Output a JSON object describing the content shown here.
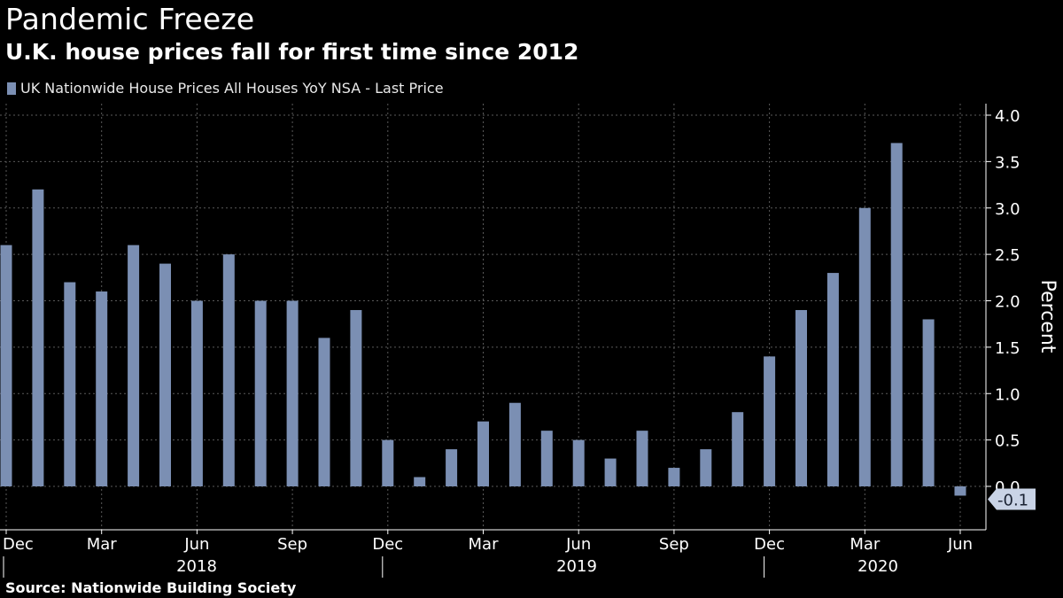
{
  "header": {
    "title": "Pandemic Freeze",
    "subtitle": "U.K. house prices fall for first time since 2012"
  },
  "legend": {
    "label": "UK Nationwide House Prices All Houses YoY NSA - Last Price"
  },
  "source": "Source: Nationwide Building Society",
  "colors": {
    "bar": "#7b8fb3",
    "background": "#000000",
    "grid": "#5a5a5a"
  },
  "chart_data": {
    "type": "bar",
    "title": "Pandemic Freeze",
    "subtitle": "U.K. house prices fall for first time since 2012",
    "ylabel": "Percent",
    "xlabel": "",
    "ylim": [
      -0.4,
      4.1
    ],
    "yticks": [
      "4.0",
      "3.5",
      "3.0",
      "2.5",
      "2.0",
      "1.5",
      "1.0",
      "0.5",
      "0.0"
    ],
    "grid": true,
    "legend_position": "top-left",
    "series": [
      {
        "name": "UK Nationwide House Prices All Houses YoY NSA - Last Price",
        "categories": [
          "Dec 2017",
          "Jan 2018",
          "Feb 2018",
          "Mar 2018",
          "Apr 2018",
          "May 2018",
          "Jun 2018",
          "Jul 2018",
          "Aug 2018",
          "Sep 2018",
          "Oct 2018",
          "Nov 2018",
          "Dec 2018",
          "Jan 2019",
          "Feb 2019",
          "Mar 2019",
          "Apr 2019",
          "May 2019",
          "Jun 2019",
          "Jul 2019",
          "Aug 2019",
          "Sep 2019",
          "Oct 2019",
          "Nov 2019",
          "Dec 2019",
          "Jan 2020",
          "Feb 2020",
          "Mar 2020",
          "Apr 2020",
          "May 2020",
          "Jun 2020"
        ],
        "values": [
          2.6,
          3.2,
          2.2,
          2.1,
          2.6,
          2.4,
          2.0,
          2.5,
          2.0,
          2.0,
          1.6,
          1.9,
          0.5,
          0.1,
          0.4,
          0.7,
          0.9,
          0.6,
          0.5,
          0.3,
          0.6,
          0.2,
          0.4,
          0.8,
          1.4,
          1.9,
          2.3,
          3.0,
          3.7,
          1.8,
          -0.1
        ]
      }
    ],
    "month_labels": [
      "Dec",
      "Mar",
      "Jun",
      "Sep",
      "Dec",
      "Mar",
      "Jun",
      "Sep",
      "Dec",
      "Mar",
      "Jun"
    ],
    "year_labels": [
      "2018",
      "2019",
      "2020"
    ],
    "last_value_label": "-0.1"
  }
}
